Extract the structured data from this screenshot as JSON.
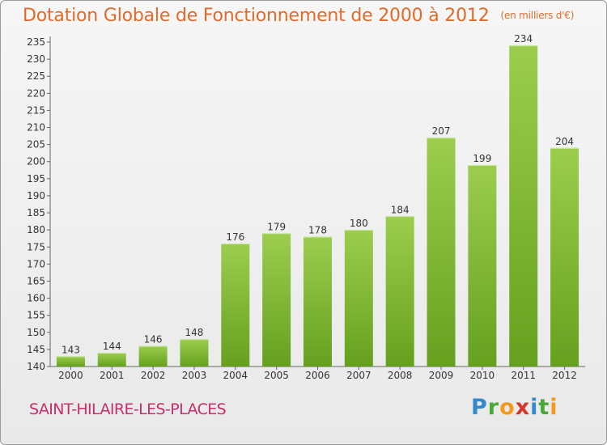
{
  "header": {
    "title": "Dotation Globale de Fonctionnement de 2000 à 2012",
    "unit": "(en milliers d'€)"
  },
  "footer": {
    "commune": "SAINT-HILAIRE-LES-PLACES",
    "logo": [
      "P",
      "r",
      "o",
      "x",
      "i",
      "t",
      "i"
    ],
    "logo_colors": [
      "#2f8ad0",
      "#4aa83a",
      "#f39a1d",
      "#d8352a",
      "#2f8ad0",
      "#4aa83a",
      "#f39a1d"
    ]
  },
  "colors": {
    "bar_top": "#9ccd4e",
    "bar_bottom": "#66a01f",
    "title": "#e06b2a",
    "commune": "#c62f6a"
  },
  "chart_data": {
    "type": "bar",
    "categories": [
      "2000",
      "2001",
      "2002",
      "2003",
      "2004",
      "2005",
      "2006",
      "2007",
      "2008",
      "2009",
      "2010",
      "2011",
      "2012"
    ],
    "values": [
      143,
      144,
      146,
      148,
      176,
      179,
      178,
      180,
      184,
      207,
      199,
      234,
      204
    ],
    "ylim": [
      140,
      235
    ],
    "yticks": [
      140,
      145,
      150,
      155,
      160,
      165,
      170,
      175,
      180,
      185,
      190,
      195,
      200,
      205,
      210,
      215,
      220,
      225,
      230,
      235
    ],
    "grid": false
  }
}
